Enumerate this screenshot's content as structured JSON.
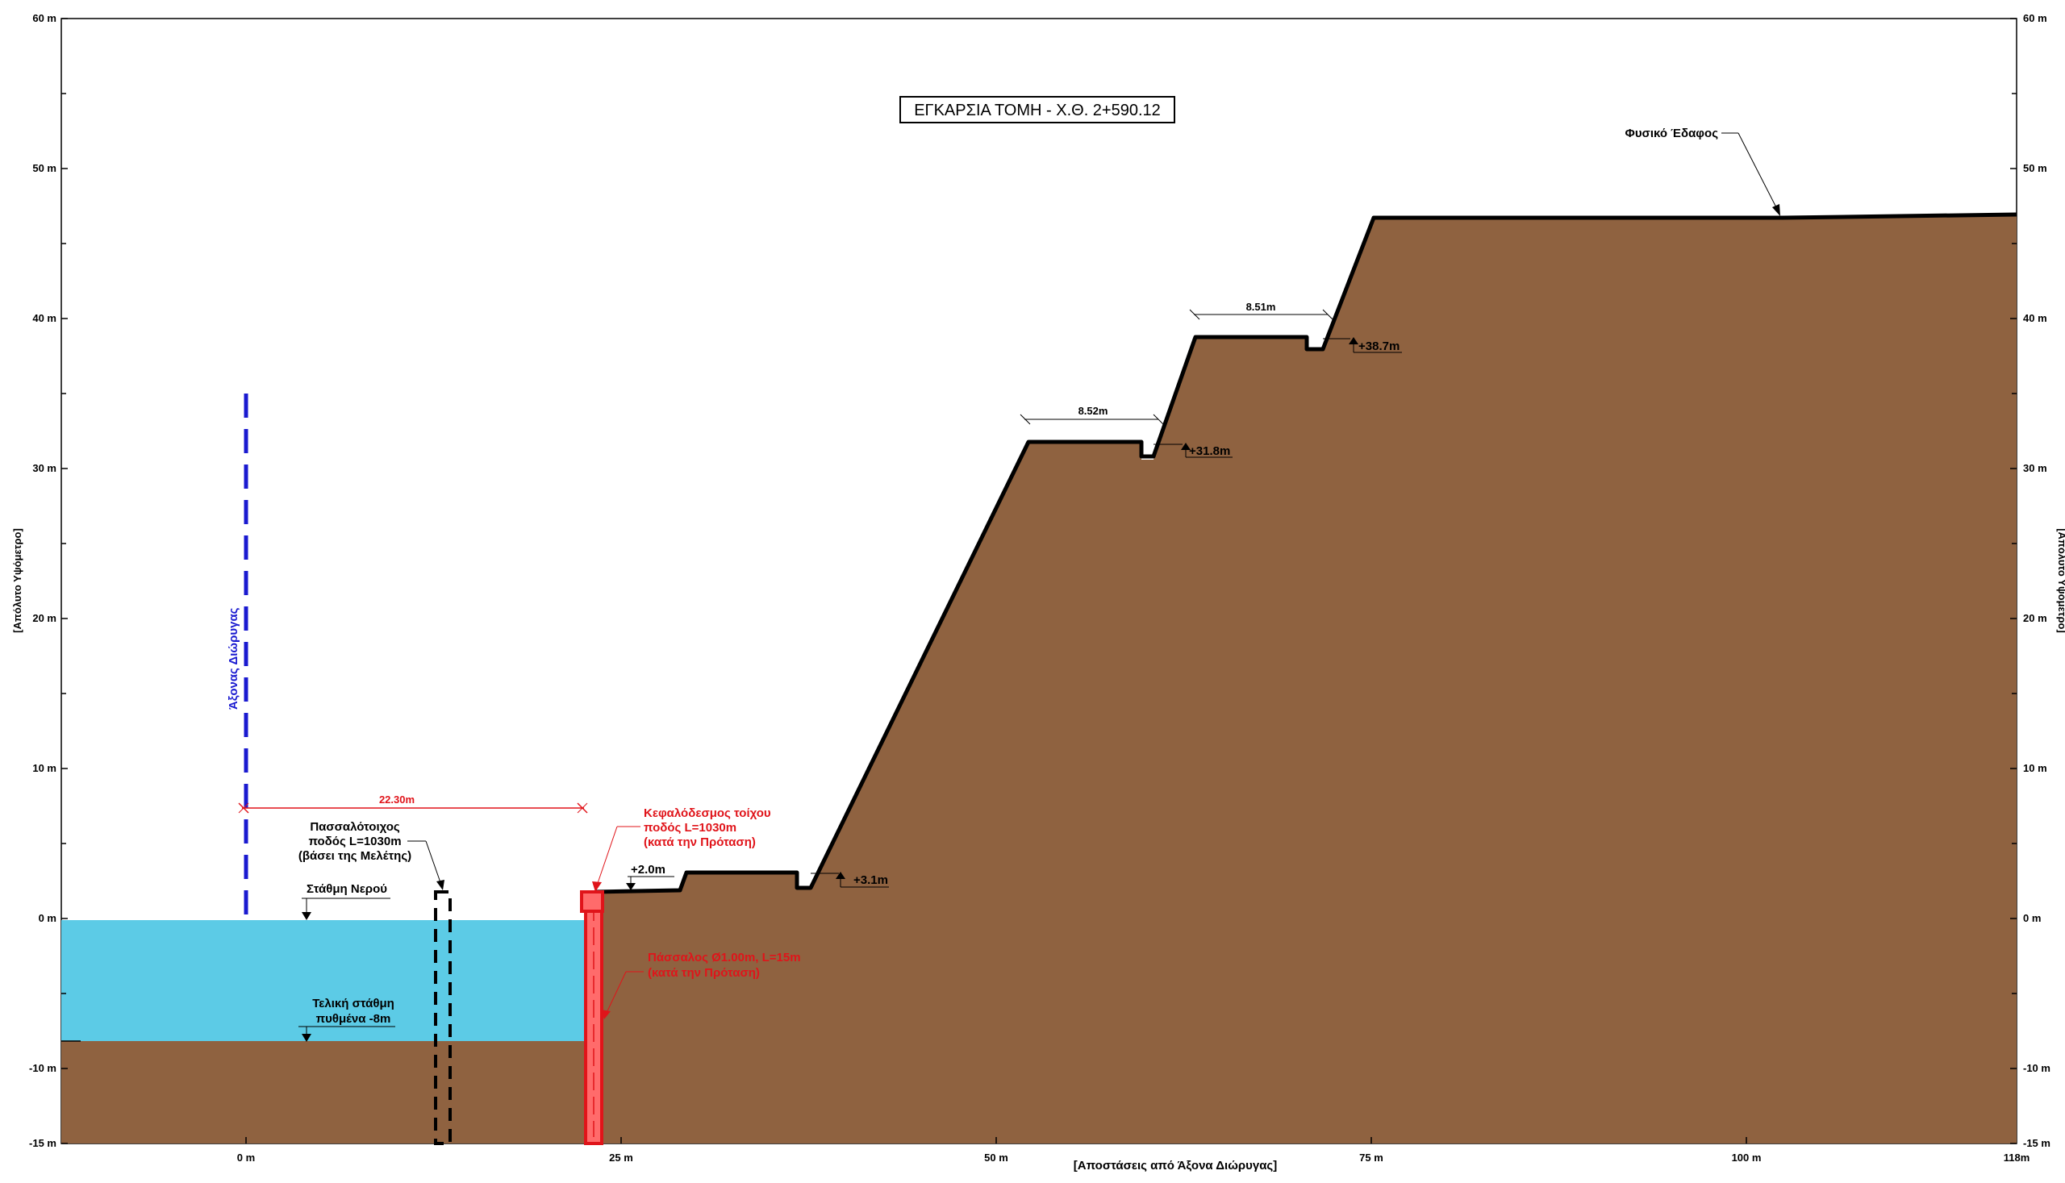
{
  "title": "ΕΓΚΑΡΣΙΑ ΤΟΜΗ - Χ.Θ. 2+590.12",
  "axes": {
    "x_label": "[Αποστάσεις από Άξονα Διώρυγας]",
    "y_label_left": "[Απόλυτο Υψόμετρο]",
    "y_label_right": "[Απόλυτο Υψόμετρο]",
    "y_ticks": [
      "60 m",
      "50 m",
      "40 m",
      "30 m",
      "20 m",
      "10 m",
      "0 m",
      "-10 m",
      "-15 m"
    ],
    "x_ticks": [
      "0 m",
      "25 m",
      "50 m",
      "75 m",
      "100 m",
      "118m"
    ]
  },
  "colors": {
    "soil": "#8f6240",
    "water": "#5ccbe6",
    "proposal": "#ff6b6b",
    "proposal_stroke": "#e0141a",
    "axis_line": "#1a1ad0"
  },
  "labels": {
    "natural_ground": "Φυσικό Έδαφος",
    "canal_axis": "Άξονας Διώρυγας",
    "dim_axis_wall": "22.30m",
    "dim_berm_1": "8.52m",
    "dim_berm_2": "8.51m",
    "level_3_1": "+3.1m",
    "level_31_8": "+31.8m",
    "level_38_7": "+38.7m",
    "level_2_0": "+2.0m",
    "water_level": "Στάθμη Νερού",
    "bottom_line1": "Τελική στάθμη",
    "bottom_line2": "πυθμένα -8m",
    "pile_wall_line1": "Πασσαλότοιχος",
    "pile_wall_line2": "ποδός L=1030m",
    "pile_wall_line3": "(βάσει της Μελέτης)",
    "head_beam_line1": "Κεφαλόδεσμος τοίχου",
    "head_beam_line2": "ποδός L=1030m",
    "head_beam_line3": "(κατά την Πρόταση)",
    "pile_line1": "Πάσσαλος Ø1.00m, L=15m",
    "pile_line2": "(κατά την Πρόταση)"
  }
}
